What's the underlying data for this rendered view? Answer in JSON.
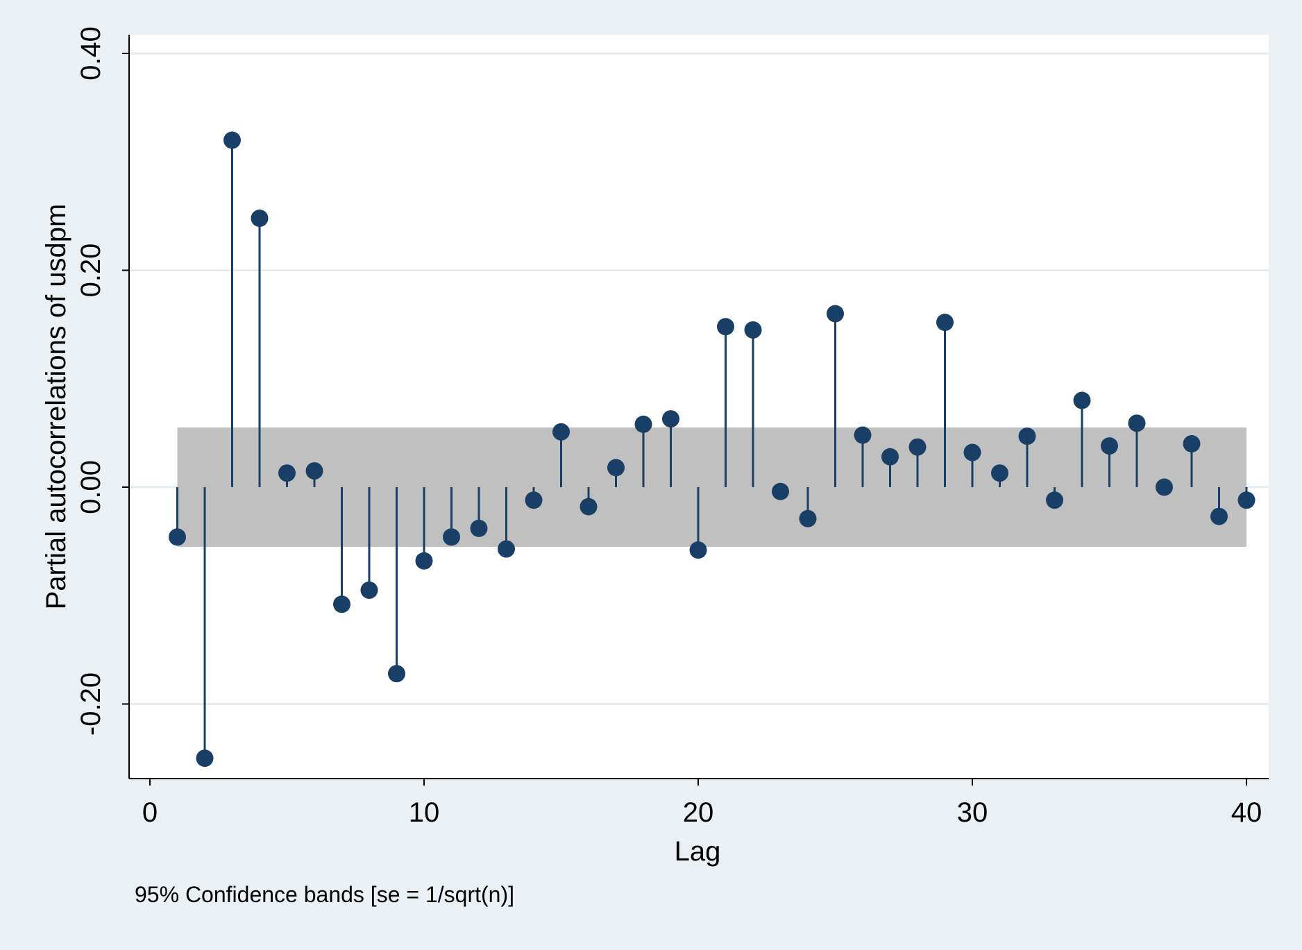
{
  "chart_data": {
    "type": "scatter",
    "subtype": "partial-autocorrelation-stem",
    "title": "",
    "xlabel": "Lag",
    "ylabel": "Partial autocorrelations of usdpm",
    "note": "95% Confidence bands [se = 1/sqrt(n)]",
    "xlim": [
      0,
      40
    ],
    "ylim": [
      -0.27,
      0.4
    ],
    "x_ticks": [
      0,
      10,
      20,
      30,
      40
    ],
    "x_tick_labels": [
      "0",
      "10",
      "20",
      "30",
      "40"
    ],
    "y_ticks": [
      -0.2,
      0.0,
      0.2,
      0.4
    ],
    "y_tick_labels": [
      "-0.20",
      "0.00",
      "0.20",
      "0.40"
    ],
    "grid": true,
    "confidence_band": {
      "lower": -0.055,
      "upper": 0.055,
      "x_start": 1,
      "x_end": 40,
      "color": "#c0c0c0"
    },
    "series": [
      {
        "x": [
          1,
          2,
          3,
          4,
          5,
          6,
          7,
          8,
          9,
          10,
          11,
          12,
          13,
          14,
          15,
          16,
          17,
          18,
          19,
          20,
          21,
          22,
          23,
          24,
          25,
          26,
          27,
          28,
          29,
          30,
          31,
          32,
          33,
          34,
          35,
          36,
          37,
          38,
          39,
          40
        ],
        "values": [
          -0.046,
          -0.25,
          0.32,
          0.248,
          0.013,
          0.015,
          -0.108,
          -0.095,
          -0.172,
          -0.068,
          -0.046,
          -0.038,
          -0.057,
          -0.012,
          0.051,
          -0.018,
          0.018,
          0.058,
          0.063,
          -0.058,
          0.148,
          0.145,
          -0.004,
          -0.029,
          0.16,
          0.048,
          0.028,
          0.037,
          0.152,
          0.032,
          0.013,
          0.047,
          -0.012,
          0.08,
          0.038,
          0.059,
          0.0,
          0.04,
          -0.027,
          -0.012
        ]
      }
    ],
    "colors": {
      "marker": "#1a3f66",
      "band": "#c0c0c0",
      "plot_background": "#ffffff",
      "outer_background": "#eaf0f3",
      "grid": "#e5ecef"
    }
  }
}
